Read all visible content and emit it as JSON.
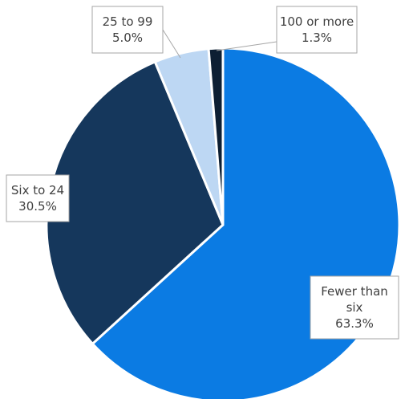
{
  "chart_data": {
    "type": "pie",
    "title": "",
    "slices": [
      {
        "label": "Fewer than six",
        "label_lines": [
          "Fewer than",
          "six"
        ],
        "value": 63.3,
        "value_text": "63.3%",
        "color": "#0b7be3"
      },
      {
        "label": "Six to 24",
        "label_lines": [
          "Six to 24"
        ],
        "value": 30.5,
        "value_text": "30.5%",
        "color": "#15375c"
      },
      {
        "label": "25 to 99",
        "label_lines": [
          "25 to 99"
        ],
        "value": 5.0,
        "value_text": "5.0%",
        "color": "#bdd7f3"
      },
      {
        "label": "100 or more",
        "label_lines": [
          "100 or more"
        ],
        "value": 1.3,
        "value_text": "1.3%",
        "color": "#0d1f33"
      }
    ],
    "start_angle": "12 o'clock",
    "direction": "clockwise",
    "legend": "none",
    "data_labels": "callouts"
  }
}
